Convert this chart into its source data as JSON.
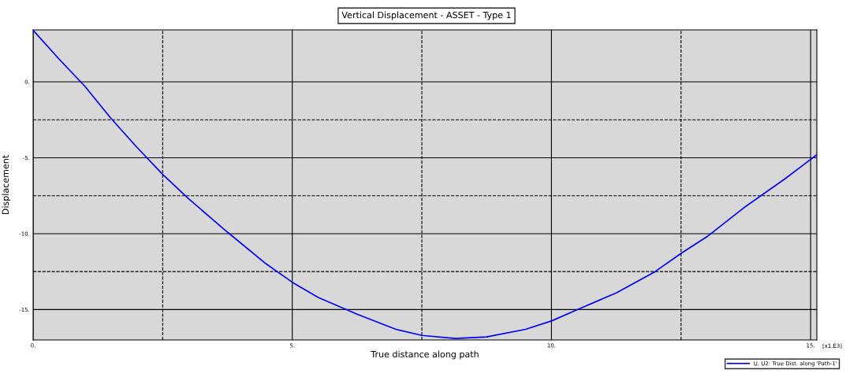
{
  "chart_data": {
    "type": "line",
    "title": "Vertical Displacement - ASSET - Type 1",
    "xlabel": "True distance along path",
    "ylabel": "Displacement",
    "annotations": [
      "[x1.E3]"
    ],
    "xlim": [
      0,
      15.12
    ],
    "ylim": [
      -17.0,
      3.42
    ],
    "xticks": [
      {
        "value": 0,
        "label": "0."
      },
      {
        "value": 5,
        "label": "5."
      },
      {
        "value": 10,
        "label": "10."
      },
      {
        "value": 15,
        "label": "15."
      }
    ],
    "yticks": [
      {
        "value": 0,
        "label": "0."
      },
      {
        "value": -5,
        "label": "-5."
      },
      {
        "value": -10,
        "label": "-10."
      },
      {
        "value": -15,
        "label": "-15."
      }
    ],
    "grid": true,
    "legend": "bottom right",
    "marker": "none",
    "line_style": "solid",
    "series": [
      {
        "name": "U, U2: True Dist. along 'Path-1'",
        "color": "#0000ff",
        "x": [
          0,
          0.5,
          1,
          1.5,
          2,
          2.5,
          3,
          3.75,
          4.5,
          5,
          5.5,
          6.25,
          7,
          7.5,
          8.15,
          8.75,
          9.5,
          10,
          10.5,
          11.25,
          12,
          12.5,
          13,
          13.75,
          14.5,
          15.12
        ],
        "values": [
          3.4,
          1.5,
          -0.3,
          -2.4,
          -4.3,
          -6.1,
          -7.7,
          -9.9,
          -12.0,
          -13.2,
          -14.2,
          -15.3,
          -16.3,
          -16.7,
          -16.9,
          -16.8,
          -16.3,
          -15.75,
          -15.0,
          -13.9,
          -12.5,
          -11.3,
          -10.2,
          -8.2,
          -6.4,
          -4.8
        ]
      }
    ]
  }
}
